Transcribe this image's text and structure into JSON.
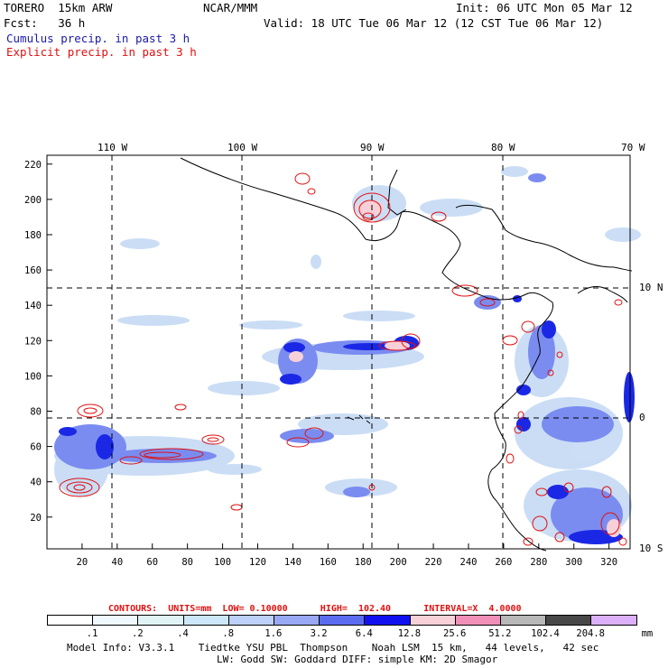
{
  "header": {
    "model": "TORERO  15km ARW",
    "org": "NCAR/MMM",
    "init": "Init: 06 UTC Mon 05 Mar 12",
    "fcst": "Fcst:   36 h",
    "valid": "Valid: 18 UTC Tue 06 Mar 12 (12 CST Tue 06 Mar 12)",
    "field1": "Cumulus precip. in past 3 h",
    "field2": "Explicit precip. in past 3 h"
  },
  "map": {
    "lon_labels": [
      "110 W",
      "100 W",
      "90 W",
      "80 W",
      "70 W"
    ],
    "lat_labels": [
      "10 N",
      "0",
      "10 S"
    ],
    "x_ticks": [
      "20",
      "40",
      "60",
      "80",
      "100",
      "120",
      "140",
      "160",
      "180",
      "200",
      "220",
      "240",
      "260",
      "280",
      "300",
      "320"
    ],
    "y_ticks": [
      "20",
      "40",
      "60",
      "80",
      "100",
      "120",
      "140",
      "160",
      "180",
      "200",
      "220"
    ],
    "colors": {
      "coast": "#000000",
      "explicit": "#e01010",
      "cumulus_light": "#c8dcf5",
      "cumulus_mid": "#7a8cf0",
      "cumulus_dark": "#1a28e6"
    }
  },
  "legend": {
    "contours_line": "CONTOURS:  UNITS=mm  LOW= 0.10000      HIGH=  102.40      INTERVAL=X  4.0000",
    "labels": [
      ".1",
      ".2",
      ".4",
      ".8",
      "1.6",
      "3.2",
      "6.4",
      "12.8",
      "25.6",
      "51.2",
      "102.4",
      "204.8",
      "mm"
    ],
    "colors": [
      "#ffffff",
      "#f0f8ff",
      "#e0f4f8",
      "#cce8f8",
      "#bcd0f8",
      "#98a8f4",
      "#5c6cf0",
      "#1010f0",
      "#f8d0d8",
      "#f090b8",
      "#b8b8b8",
      "#484848",
      "#dcb0f8"
    ]
  },
  "footer": {
    "line1": "Model Info: V3.3.1    Tiedtke YSU PBL  Thompson    Noah LSM  15 km,   44 levels,   42 sec",
    "line2": "LW: Godd SW: Goddard DIFF: simple KM: 2D Smagor"
  }
}
